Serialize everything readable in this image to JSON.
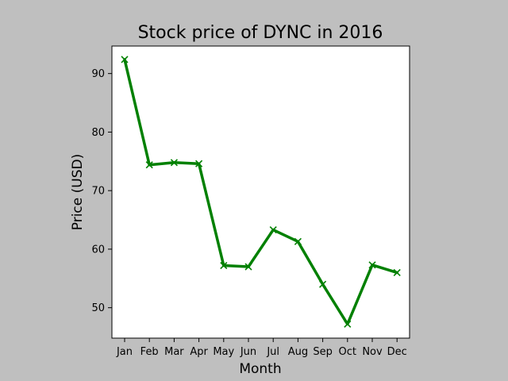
{
  "chart_data": {
    "type": "line",
    "title": "Stock price of DYNC in 2016",
    "xlabel": "Month",
    "ylabel": "Price (USD)",
    "categories": [
      "Jan",
      "Feb",
      "Mar",
      "Apr",
      "May",
      "Jun",
      "Jul",
      "Aug",
      "Sep",
      "Oct",
      "Nov",
      "Dec"
    ],
    "values": [
      92.4,
      74.4,
      74.8,
      74.6,
      57.2,
      57.0,
      63.3,
      61.3,
      54.0,
      47.2,
      57.3,
      56.0
    ],
    "yticks": [
      50,
      60,
      70,
      80,
      90
    ],
    "ylim": [
      44.8,
      94.7
    ],
    "grid": false,
    "colors": {
      "line": "#008000",
      "page_background": "#bfbfbf",
      "plot_background": "#ffffff"
    },
    "marker": "x"
  }
}
